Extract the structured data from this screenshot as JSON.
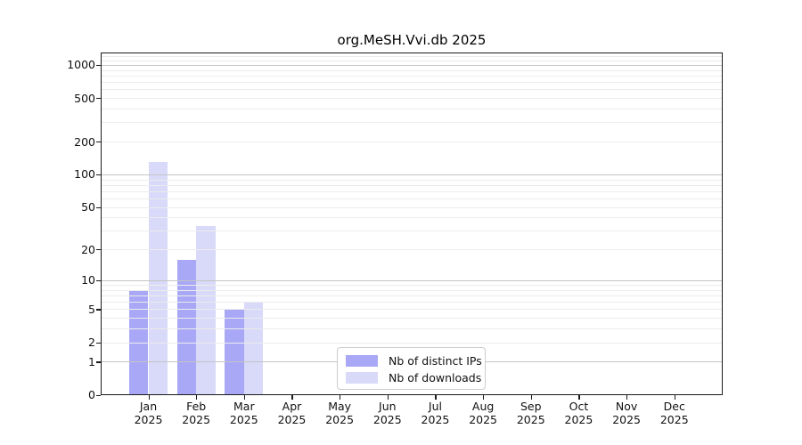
{
  "title": "org.MeSH.Vvi.db 2025",
  "chart_data": {
    "type": "bar",
    "title": "org.MeSH.Vvi.db 2025",
    "x_months": [
      "Jan",
      "Feb",
      "Mar",
      "Apr",
      "May",
      "Jun",
      "Jul",
      "Aug",
      "Sep",
      "Oct",
      "Nov",
      "Dec"
    ],
    "x_year": "2025",
    "series": [
      {
        "name": "Nb of distinct IPs",
        "color": "#a8a8f6",
        "values": [
          8,
          16,
          5,
          0,
          0,
          0,
          0,
          0,
          0,
          0,
          0,
          0
        ]
      },
      {
        "name": "Nb of downloads",
        "color": "#d9d9f9",
        "values": [
          130,
          33,
          6,
          0,
          0,
          0,
          0,
          0,
          0,
          0,
          0,
          0
        ]
      }
    ],
    "y_scale": "log10(1+y)",
    "y_ticks": [
      0,
      1,
      2,
      5,
      10,
      20,
      50,
      100,
      200,
      500,
      1000
    ],
    "y_major_gridlines": [
      1,
      10,
      100,
      1000
    ],
    "y_minor_gridline_mantissas": [
      2,
      3,
      4,
      5,
      6,
      7,
      8,
      9
    ],
    "y_extra_minor_gridlines": [
      1100,
      1200
    ],
    "ylim": [
      0,
      1300
    ],
    "grid": "horizontal",
    "legend_position": "bottom-center-inside"
  }
}
